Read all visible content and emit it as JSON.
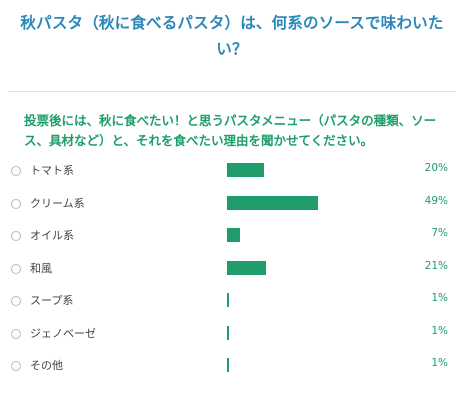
{
  "survey": {
    "title": "秋パスタ（秋に食べるパスタ）は、何系のソースで味わいたい？",
    "question": "投票後には、秋に食べたい！と思うパスタメニュー（パスタの種類、ソース、具材など）と、それを食べたい理由を聞かせてください。",
    "accent_color": "#1f9e6b",
    "title_color": "#2a87b8",
    "options": [
      {
        "label": "トマト系",
        "percent": 20,
        "percent_label": "20%"
      },
      {
        "label": "クリーム系",
        "percent": 49,
        "percent_label": "49%"
      },
      {
        "label": "オイル系",
        "percent": 7,
        "percent_label": "7%"
      },
      {
        "label": "和風",
        "percent": 21,
        "percent_label": "21%"
      },
      {
        "label": "スープ系",
        "percent": 1,
        "percent_label": "1%"
      },
      {
        "label": "ジェノベーゼ",
        "percent": 1,
        "percent_label": "1%"
      },
      {
        "label": "その他",
        "percent": 1,
        "percent_label": "1%"
      }
    ]
  }
}
